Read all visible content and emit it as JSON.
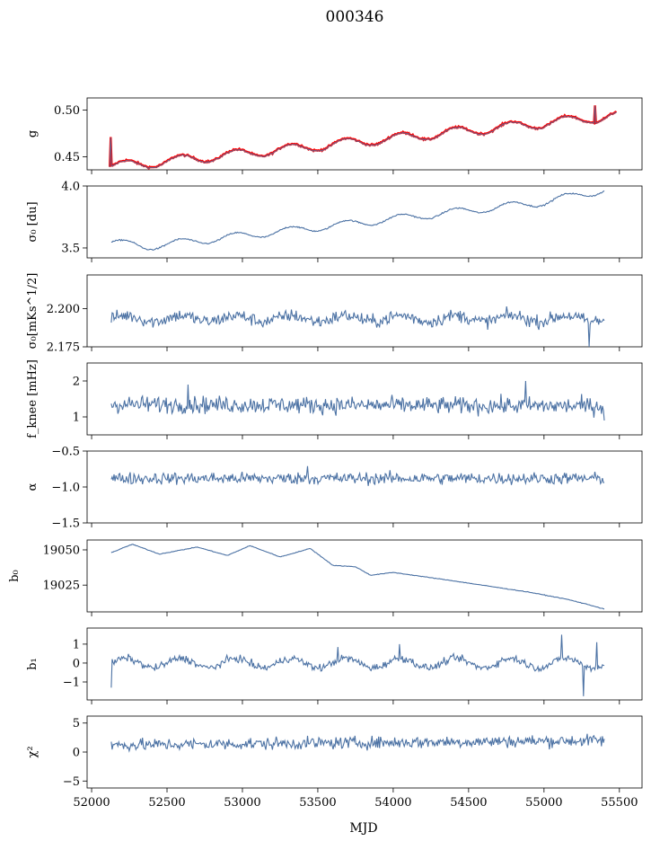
{
  "figure": {
    "title": "000346",
    "xlabel": "MJD",
    "series_color": "#4c72a4",
    "fit_color": "#ff0000"
  },
  "chart_data": [
    {
      "type": "line",
      "id": "g",
      "ylabel": "g",
      "ylim": [
        0.436,
        0.513
      ],
      "yticks": [
        0.45,
        0.5
      ],
      "yticklabels": [
        "0.45",
        "0.50"
      ],
      "xlim": [
        51970,
        55650
      ],
      "x_start": 52120,
      "x_end": 55480,
      "trend_points": [
        [
          52120,
          0.44
        ],
        [
          52300,
          0.442
        ],
        [
          55480,
          0.494
        ]
      ],
      "oscillation_amplitude": 0.005,
      "period_days": 365,
      "noise": 0.0007,
      "spikes": [
        [
          52125,
          0.471
        ],
        [
          54440,
          0.482
        ],
        [
          55340,
          0.505
        ]
      ],
      "overlay_fit": true
    },
    {
      "type": "line",
      "id": "sigma0",
      "ylabel": "σ₀ [du]",
      "ylim": [
        3.42,
        4.0
      ],
      "yticks": [
        3.5,
        4.0
      ],
      "yticklabels": [
        "3.5",
        "4.0"
      ],
      "xlim": [
        51970,
        55650
      ],
      "x_start": 52130,
      "x_end": 55400,
      "trend_points": [
        [
          52130,
          3.55
        ],
        [
          52350,
          3.51
        ],
        [
          55000,
          3.87
        ],
        [
          55400,
          3.97
        ]
      ],
      "oscillation_amplitude": 0.03,
      "period_days": 365,
      "noise": 0.004
    },
    {
      "type": "line",
      "id": "sigma0_mk",
      "ylabel": "σ₀[mKs^1/2]",
      "ylim": [
        2.175,
        2.222
      ],
      "yticks": [
        2.175,
        2.2
      ],
      "yticklabels": [
        "2.175",
        "2.200"
      ],
      "xlim": [
        51970,
        55650
      ],
      "x_start": 52130,
      "x_end": 55400,
      "trend_points": [
        [
          52130,
          2.1935
        ],
        [
          55400,
          2.1935
        ]
      ],
      "oscillation_amplitude": 0.002,
      "period_days": 365,
      "noise": 0.003,
      "spikes": [
        [
          55300,
          2.173
        ]
      ]
    },
    {
      "type": "line",
      "id": "fknee",
      "ylabel": "f_knee [mHz]",
      "ylim": [
        0.5,
        2.5
      ],
      "yticks": [
        1,
        2
      ],
      "yticklabels": [
        "1",
        "2"
      ],
      "xlim": [
        51970,
        55650
      ],
      "x_start": 52130,
      "x_end": 55400,
      "trend_points": [
        [
          52130,
          1.35
        ],
        [
          55400,
          1.3
        ]
      ],
      "oscillation_amplitude": 0.0,
      "period_days": 365,
      "noise": 0.17,
      "spikes": [
        [
          54880,
          2.0
        ],
        [
          52640,
          1.9
        ],
        [
          55400,
          0.9
        ]
      ]
    },
    {
      "type": "line",
      "id": "alpha",
      "ylabel": "α",
      "ylim": [
        -1.5,
        -0.5
      ],
      "yticks": [
        -1.5,
        -1.0,
        -0.5
      ],
      "yticklabels": [
        "−1.5",
        "−1.0",
        "−0.5"
      ],
      "xlim": [
        51970,
        55650
      ],
      "x_start": 52130,
      "x_end": 55400,
      "trend_points": [
        [
          52130,
          -0.88
        ],
        [
          55400,
          -0.88
        ]
      ],
      "oscillation_amplitude": 0.0,
      "period_days": 365,
      "noise": 0.06,
      "spikes": [
        [
          53430,
          -0.71
        ]
      ]
    },
    {
      "type": "line",
      "id": "b0",
      "ylabel": "b₀",
      "ylim": [
        19006,
        19057
      ],
      "yticks": [
        19025,
        19050
      ],
      "yticklabels": [
        "19025",
        "19050"
      ],
      "xlim": [
        51970,
        55650
      ],
      "x_start": 52130,
      "x_end": 55400,
      "trend_points": [
        [
          52130,
          19048
        ],
        [
          52270,
          19054
        ],
        [
          52450,
          19047
        ],
        [
          52700,
          19052
        ],
        [
          52900,
          19046
        ],
        [
          53050,
          19053
        ],
        [
          53250,
          19045
        ],
        [
          53450,
          19051
        ],
        [
          53600,
          19039
        ],
        [
          53750,
          19038
        ],
        [
          53850,
          19032
        ],
        [
          54000,
          19034
        ],
        [
          54400,
          19028
        ],
        [
          54900,
          19020
        ],
        [
          55150,
          19015
        ],
        [
          55300,
          19011
        ],
        [
          55400,
          19008
        ]
      ],
      "oscillation_amplitude": 0.0,
      "period_days": 365,
      "noise": 0.15
    },
    {
      "type": "line",
      "id": "b1",
      "ylabel": "b₁",
      "ylim": [
        -1.95,
        1.85
      ],
      "yticks": [
        -1,
        0,
        1
      ],
      "yticklabels": [
        "−1",
        "0",
        "1"
      ],
      "xlim": [
        51970,
        55650
      ],
      "x_start": 52130,
      "x_end": 55400,
      "trend_points": [
        [
          52130,
          0.0
        ],
        [
          55400,
          0.0
        ]
      ],
      "oscillation_amplitude": 0.25,
      "period_days": 365,
      "noise": 0.14,
      "spikes": [
        [
          52130,
          -1.3
        ],
        [
          55120,
          1.5
        ],
        [
          55260,
          -1.75
        ],
        [
          55350,
          1.1
        ],
        [
          53630,
          0.85
        ],
        [
          54040,
          1.0
        ]
      ]
    },
    {
      "type": "line",
      "id": "chi2",
      "ylabel": "χ²",
      "ylim": [
        -6.2,
        6.2
      ],
      "yticks": [
        -5,
        0,
        5
      ],
      "yticklabels": [
        "−5",
        "0",
        "5"
      ],
      "xlim": [
        51970,
        55650
      ],
      "x_start": 52130,
      "x_end": 55400,
      "trend_points": [
        [
          52130,
          1.2
        ],
        [
          55400,
          2.0
        ]
      ],
      "oscillation_amplitude": 0.0,
      "period_days": 365,
      "noise": 0.75,
      "xticks": [
        52000,
        52500,
        53000,
        53500,
        54000,
        54500,
        55000,
        55500
      ],
      "xticklabels": [
        "52000",
        "52500",
        "53000",
        "53500",
        "54000",
        "54500",
        "55000",
        "55500"
      ]
    }
  ]
}
